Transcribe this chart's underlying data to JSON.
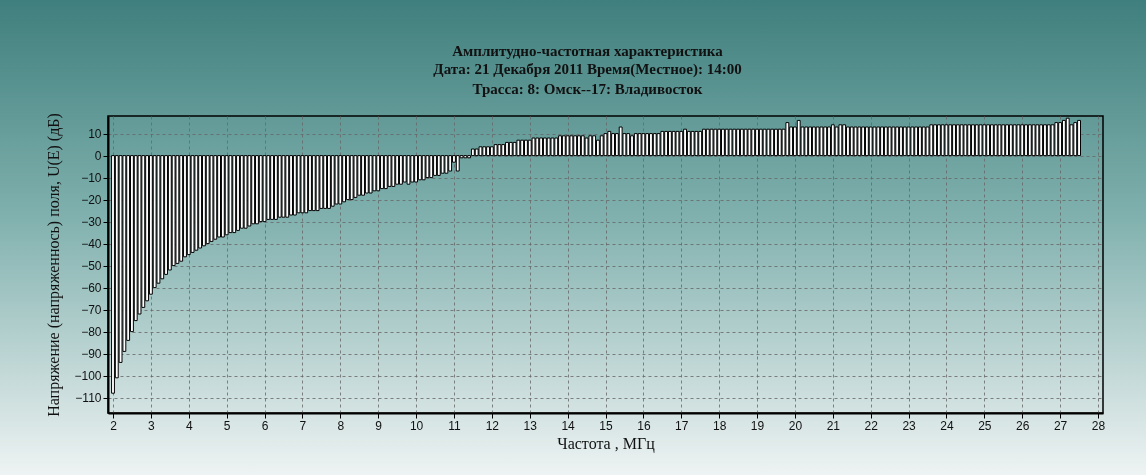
{
  "chart_data": {
    "type": "bar",
    "title": "Амплитудно-частотная характеристика",
    "subtitle": "Дата: 21 Декабря 2011 Время(Местное): 14:00\nТрасса: 8: Омск--17: Владивосток",
    "xlabel": "Частота , МГц",
    "ylabel": "Напряжение (напряженноcь) поля,  U(E) (дБ)",
    "x": [
      2.0,
      2.1,
      2.2,
      2.3,
      2.4,
      2.5,
      2.6,
      2.7,
      2.8,
      2.9,
      3.0,
      3.1,
      3.2,
      3.3,
      3.4,
      3.5,
      3.6,
      3.7,
      3.8,
      3.9,
      4.0,
      4.1,
      4.2,
      4.3,
      4.4,
      4.5,
      4.6,
      4.7,
      4.8,
      4.9,
      5.0,
      5.1,
      5.2,
      5.3,
      5.4,
      5.5,
      5.6,
      5.7,
      5.8,
      5.9,
      6.0,
      6.1,
      6.2,
      6.3,
      6.4,
      6.5,
      6.6,
      6.7,
      6.8,
      6.9,
      7.0,
      7.1,
      7.2,
      7.3,
      7.4,
      7.5,
      7.6,
      7.7,
      7.8,
      7.9,
      8.0,
      8.1,
      8.2,
      8.3,
      8.4,
      8.5,
      8.6,
      8.7,
      8.8,
      8.9,
      9.0,
      9.1,
      9.2,
      9.3,
      9.4,
      9.5,
      9.6,
      9.7,
      9.8,
      9.9,
      10.0,
      10.1,
      10.2,
      10.3,
      10.4,
      10.5,
      10.6,
      10.7,
      10.8,
      10.9,
      11.0,
      11.1,
      11.2,
      11.3,
      11.4,
      11.5,
      11.6,
      11.7,
      11.8,
      11.9,
      12.0,
      12.1,
      12.2,
      12.3,
      12.4,
      12.5,
      12.6,
      12.7,
      12.8,
      12.9,
      13.0,
      13.1,
      13.2,
      13.3,
      13.4,
      13.5,
      13.6,
      13.7,
      13.8,
      13.9,
      14.0,
      14.1,
      14.2,
      14.3,
      14.4,
      14.5,
      14.6,
      14.7,
      14.8,
      14.9,
      15.0,
      15.1,
      15.2,
      15.3,
      15.4,
      15.5,
      15.6,
      15.7,
      15.8,
      15.9,
      16.0,
      16.1,
      16.2,
      16.3,
      16.4,
      16.5,
      16.6,
      16.7,
      16.8,
      16.9,
      17.0,
      17.1,
      17.2,
      17.3,
      17.4,
      17.5,
      17.6,
      17.7,
      17.8,
      17.9,
      18.0,
      18.1,
      18.2,
      18.3,
      18.4,
      18.5,
      18.6,
      18.7,
      18.8,
      18.9,
      19.0,
      19.1,
      19.2,
      19.3,
      19.4,
      19.5,
      19.6,
      19.7,
      19.8,
      19.9,
      20.0,
      20.1,
      20.2,
      20.3,
      20.4,
      20.5,
      20.6,
      20.7,
      20.8,
      20.9,
      21.0,
      21.1,
      21.2,
      21.3,
      21.4,
      21.5,
      21.6,
      21.7,
      21.8,
      21.9,
      22.0,
      22.1,
      22.2,
      22.3,
      22.4,
      22.5,
      22.6,
      22.7,
      22.8,
      22.9,
      23.0,
      23.1,
      23.2,
      23.3,
      23.4,
      23.5,
      23.6,
      23.7,
      23.8,
      23.9,
      24.0,
      24.1,
      24.2,
      24.3,
      24.4,
      24.5,
      24.6,
      24.7,
      24.8,
      24.9,
      25.0,
      25.1,
      25.2,
      25.3,
      25.4,
      25.5,
      25.6,
      25.7,
      25.8,
      25.9,
      26.0,
      26.1,
      26.2,
      26.3,
      26.4,
      26.5,
      26.6,
      26.7,
      26.8,
      26.9,
      27.0,
      27.1,
      27.2,
      27.3,
      27.4,
      27.5
    ],
    "series": [
      {
        "color": "#ffffff",
        "values": [
          -108,
          -101,
          -94,
          -89,
          -84,
          -80,
          -75,
          -72,
          -69,
          -66,
          -63,
          -60,
          -58,
          -56,
          -54,
          -52,
          -50,
          -49,
          -48,
          -46,
          -45,
          -44,
          -43,
          -42,
          -41,
          -40,
          -39,
          -38,
          -37,
          -37,
          -36,
          -35,
          -35,
          -34,
          -33,
          -33,
          -32,
          -31,
          -31,
          -30,
          -30,
          -29,
          -29,
          -29,
          -28,
          -28,
          -28,
          -27,
          -27,
          -26,
          -26,
          -26,
          -25,
          -25,
          -25,
          -24,
          -24,
          -24,
          -23,
          -22,
          -22,
          -21,
          -20,
          -20,
          -19,
          -18,
          -18,
          -17,
          -17,
          -16,
          -16,
          -15,
          -15,
          -14,
          -14,
          -13,
          -13,
          -12,
          -13,
          -12,
          -12,
          -11,
          -11,
          -10,
          -10,
          -9,
          -9,
          -8,
          -8,
          -7,
          -3,
          -7,
          -1,
          -1,
          -1,
          3,
          3,
          4,
          4,
          4,
          4,
          5,
          5,
          5,
          6,
          6,
          6,
          7,
          7,
          7,
          7,
          8,
          8,
          8,
          8,
          8,
          8,
          8,
          9,
          9,
          9,
          9,
          9,
          9,
          9,
          8,
          9,
          9,
          7,
          9,
          10,
          11,
          10,
          10,
          13,
          10,
          10,
          9,
          10,
          10,
          10,
          10,
          10,
          10,
          10,
          11,
          11,
          11,
          11,
          11,
          11,
          12,
          11,
          11,
          11,
          11,
          12,
          12,
          12,
          12,
          12,
          12,
          12,
          12,
          12,
          12,
          12,
          12,
          12,
          12,
          12,
          12,
          12,
          12,
          12,
          12,
          12,
          12,
          15,
          13,
          13,
          16,
          13,
          13,
          13,
          13,
          13,
          13,
          13,
          13,
          14,
          13,
          14,
          14,
          13,
          13,
          13,
          13,
          13,
          13,
          13,
          13,
          13,
          13,
          13,
          13,
          13,
          13,
          13,
          13,
          13,
          13,
          13,
          13,
          13,
          13,
          14,
          14,
          14,
          14,
          14,
          14,
          14,
          14,
          14,
          14,
          14,
          14,
          14,
          14,
          14,
          14,
          14,
          14,
          14,
          14,
          14,
          14,
          14,
          14,
          14,
          14,
          14,
          14,
          14,
          14,
          14,
          14,
          14,
          15,
          15,
          16,
          17,
          14,
          15,
          16
        ]
      }
    ],
    "xlim": [
      2,
      28
    ],
    "xticks": [
      2,
      3,
      4,
      5,
      6,
      7,
      8,
      9,
      10,
      11,
      12,
      13,
      14,
      15,
      16,
      17,
      18,
      19,
      20,
      21,
      22,
      23,
      24,
      25,
      26,
      27,
      28
    ],
    "ylim": [
      -117,
      18
    ],
    "yticks": [
      -110,
      -100,
      -90,
      -80,
      -70,
      -60,
      -50,
      -40,
      -30,
      -20,
      -10,
      0,
      10
    ],
    "grid": true
  }
}
